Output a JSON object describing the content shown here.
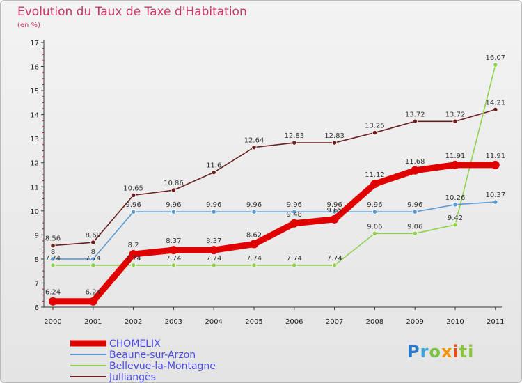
{
  "title": "Evolution du Taux de Taxe d'Habitation",
  "unit_label": "(en %)",
  "logo_text": "Proxiti",
  "chart_data": {
    "type": "line",
    "title": "Evolution du Taux de Taxe d'Habitation",
    "ylabel": "(en %)",
    "x": [
      "2000",
      "2001",
      "2002",
      "2003",
      "2004",
      "2005",
      "2006",
      "2007",
      "2008",
      "2009",
      "2010",
      "2011"
    ],
    "ylim": [
      6,
      17
    ],
    "yticks": [
      6,
      7,
      8,
      9,
      10,
      11,
      12,
      13,
      14,
      15,
      16,
      17
    ],
    "grid": false,
    "legend_position": "bottom-left",
    "series": [
      {
        "name": "CHOMELIX",
        "color": "#e00000",
        "values": [
          6.24,
          6.24,
          8.2,
          8.37,
          8.37,
          8.62,
          9.48,
          9.65,
          11.12,
          11.68,
          11.91,
          11.91
        ],
        "labels": [
          "6.24",
          "6.24",
          "8.2",
          "8.37",
          "8.37",
          "8.62",
          "9.48",
          "9.65",
          "11.12",
          "11.68",
          "11.91",
          "11.91"
        ],
        "thick": true
      },
      {
        "name": "Beaune-sur-Arzon",
        "color": "#5b9bd5",
        "values": [
          8,
          8,
          9.96,
          9.96,
          9.96,
          9.96,
          9.96,
          9.96,
          9.96,
          9.96,
          10.26,
          10.37
        ],
        "labels": [
          "8",
          "8",
          "9.96",
          "9.96",
          "9.96",
          "9.96",
          "9.96",
          "9.96",
          "9.96",
          "9.96",
          "10.26",
          "10.37"
        ],
        "thick": false
      },
      {
        "name": "Bellevue-la-Montagne",
        "color": "#8fd14f",
        "values": [
          7.74,
          7.74,
          7.74,
          7.74,
          7.74,
          7.74,
          7.74,
          7.74,
          9.06,
          9.06,
          9.42,
          16.07
        ],
        "labels": [
          "7.74",
          "7.74",
          "7.74",
          "7.74",
          "7.74",
          "7.74",
          "7.74",
          "7.74",
          "9.06",
          "9.06",
          "9.42",
          "16.07"
        ],
        "thick": false
      },
      {
        "name": "Julliangès",
        "color": "#6b1e1e",
        "values": [
          8.56,
          8.69,
          10.65,
          10.86,
          11.6,
          12.64,
          12.83,
          12.83,
          13.25,
          13.72,
          13.72,
          14.21
        ],
        "labels": [
          "8.56",
          "8.69",
          "10.65",
          "10.86",
          "11.6",
          "12.64",
          "12.83",
          "12.83",
          "13.25",
          "13.72",
          "13.72",
          "14.21"
        ],
        "thick": false
      }
    ]
  }
}
